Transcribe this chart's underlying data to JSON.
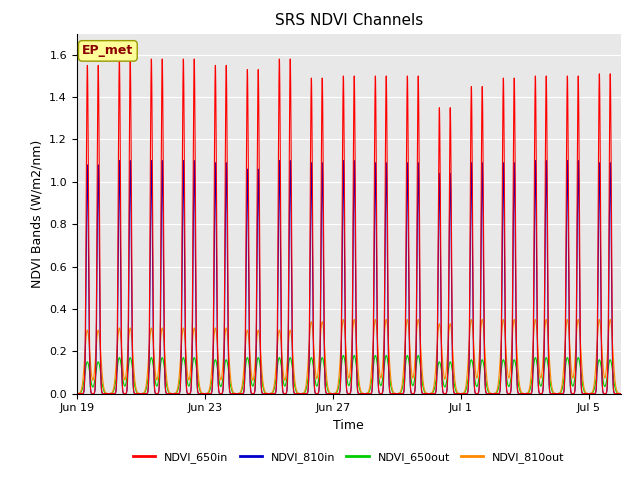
{
  "title": "SRS NDVI Channels",
  "xlabel": "Time",
  "ylabel": "NDVI Bands (W/m2/nm)",
  "ylim": [
    0.0,
    1.7
  ],
  "yticks": [
    0.0,
    0.2,
    0.4,
    0.6,
    0.8,
    1.0,
    1.2,
    1.4,
    1.6
  ],
  "bg_color": "#e8e8e8",
  "annotation_text": "EP_met",
  "annotation_color": "#8b0000",
  "annotation_bg": "#ffff99",
  "series": {
    "NDVI_650in": {
      "color": "#ff0000",
      "lw": 0.8
    },
    "NDVI_810in": {
      "color": "#0000cc",
      "lw": 0.8
    },
    "NDVI_650out": {
      "color": "#00cc00",
      "lw": 0.8
    },
    "NDVI_810out": {
      "color": "#ff8800",
      "lw": 0.8
    }
  },
  "num_days": 17,
  "peaks_per_day": 2,
  "peak_650in": [
    1.55,
    1.58,
    1.58,
    1.58,
    1.55,
    1.53,
    1.58,
    1.49,
    1.5,
    1.5,
    1.5,
    1.35,
    1.45,
    1.49,
    1.5,
    1.5,
    1.51
  ],
  "peak_810in": [
    1.08,
    1.1,
    1.1,
    1.1,
    1.09,
    1.06,
    1.1,
    1.09,
    1.1,
    1.09,
    1.09,
    1.04,
    1.09,
    1.09,
    1.1,
    1.1,
    1.09
  ],
  "peak_650out": [
    0.15,
    0.17,
    0.17,
    0.17,
    0.16,
    0.17,
    0.17,
    0.17,
    0.18,
    0.18,
    0.18,
    0.15,
    0.16,
    0.16,
    0.17,
    0.17,
    0.16
  ],
  "peak_810out": [
    0.3,
    0.31,
    0.31,
    0.31,
    0.31,
    0.3,
    0.3,
    0.34,
    0.35,
    0.35,
    0.35,
    0.33,
    0.35,
    0.35,
    0.35,
    0.35,
    0.35
  ],
  "x_tick_positions": [
    0,
    4,
    8,
    12,
    16
  ],
  "x_tick_labels": [
    "Jun 19",
    "Jun 23",
    "Jun 27",
    "Jul 1",
    "Jul 5"
  ],
  "title_fontsize": 11,
  "axis_label_fontsize": 9,
  "tick_fontsize": 8,
  "legend_fontsize": 8
}
